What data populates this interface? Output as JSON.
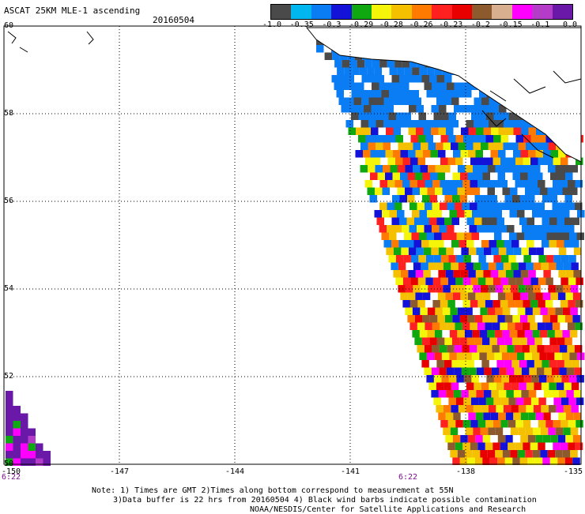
{
  "header": {
    "title": "ASCAT 25KM MLE-1 ascending",
    "date": "20160504"
  },
  "colorbar": {
    "colors": [
      "#4a4a4a",
      "#00b7f0",
      "#0a7df5",
      "#1212d8",
      "#10a810",
      "#f5f50a",
      "#f5c000",
      "#ff7a00",
      "#ff2020",
      "#e80000",
      "#8c5a2c",
      "#d8b090",
      "#ff00ff",
      "#b43cc8",
      "#6a18a8"
    ],
    "labels": [
      "-1.0",
      "-0.35",
      "-0.3",
      "-0.29",
      "-0.28",
      "-0.26",
      "-0.23",
      "-0.2",
      "-0.15",
      "-0.1",
      "0.0"
    ]
  },
  "map": {
    "lon_range": [
      -150,
      -135
    ],
    "lat_range": [
      50,
      60
    ],
    "lon_ticks": [
      "-150",
      "-147",
      "-144",
      "-141",
      "-138",
      "-135"
    ],
    "lat_ticks": [
      "60",
      "58",
      "56",
      "54",
      "52",
      "50"
    ],
    "time_labels": [
      {
        "text": "6:22",
        "lon": -150
      },
      {
        "text": "6:22",
        "lon": -139.5
      }
    ]
  },
  "notes": {
    "line1": "Note: 1) Times are GMT 2)Times along bottom correspond to measurement at 55N",
    "line2": "3)Data buffer is 22 hrs from 20160504 4) Black wind barbs indicate possible contamination",
    "line3": "NOAA/NESDIS/Center for Satellite Applications and Research"
  }
}
